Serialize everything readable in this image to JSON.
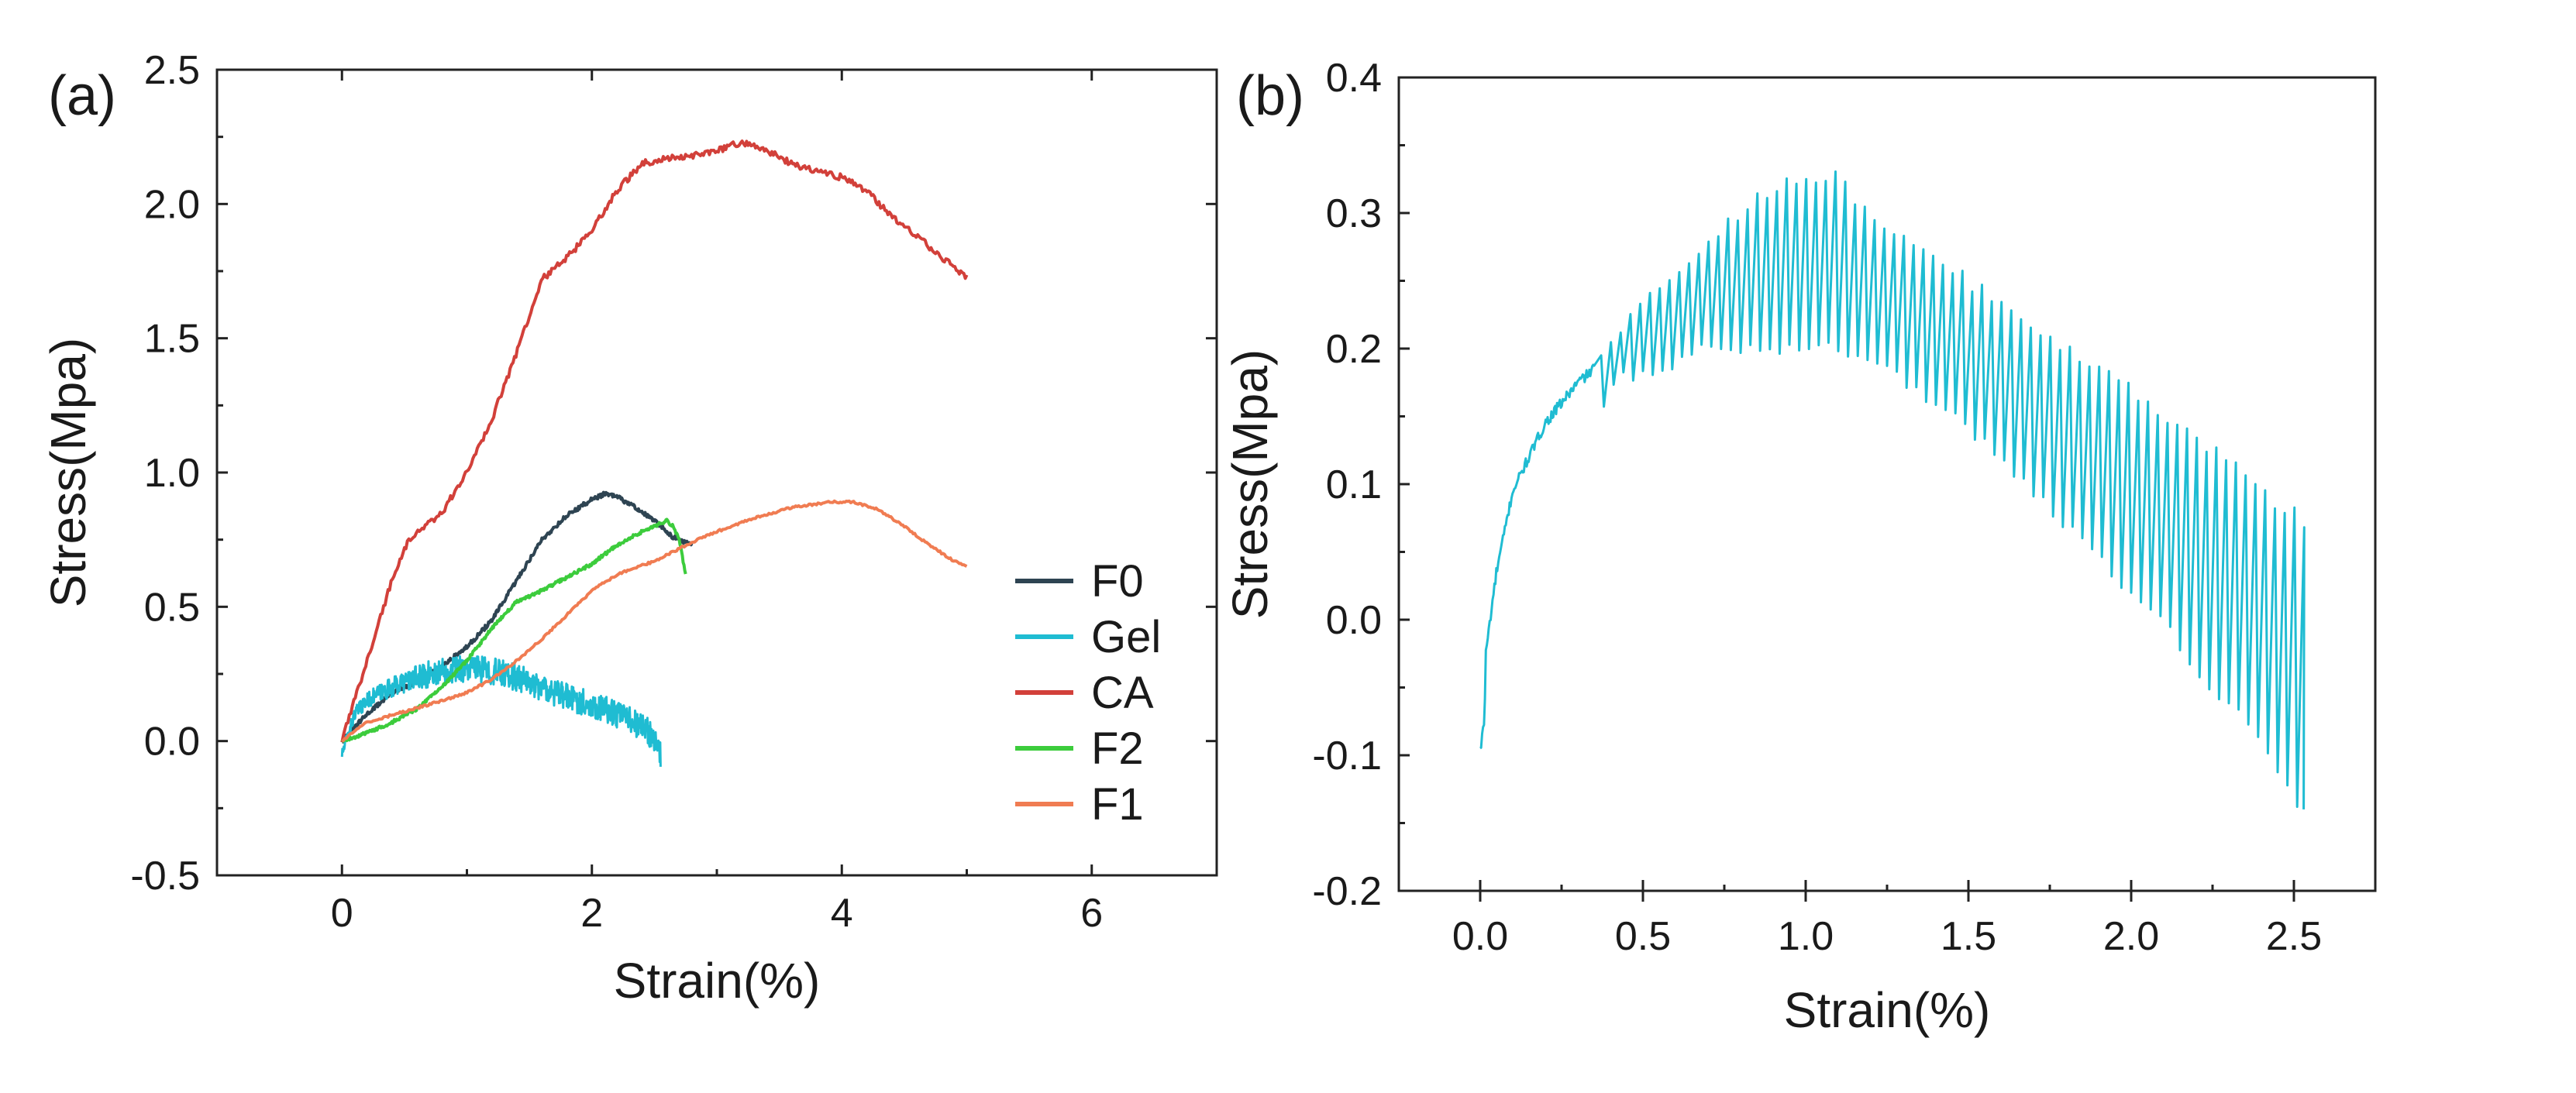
{
  "chart_data": [
    {
      "panel_label": "(a)",
      "type": "line",
      "xlabel": "Strain(%)",
      "ylabel": "Stress(Mpa)",
      "xlim": [
        -1,
        7
      ],
      "ylim": [
        -0.5,
        2.5
      ],
      "xticks": [
        0,
        2,
        4,
        6
      ],
      "xtick_labels": [
        "0",
        "2",
        "4",
        "6"
      ],
      "yticks": [
        -0.5,
        0.0,
        0.5,
        1.0,
        1.5,
        2.0,
        2.5
      ],
      "ytick_labels": [
        "-0.5",
        "0.0",
        "0.5",
        "1.0",
        "1.5",
        "2.0",
        "2.5"
      ],
      "legend_position": "right",
      "series": [
        {
          "name": "F0",
          "color": "#2e4452",
          "x": [
            0,
            0.2,
            0.4,
            0.6,
            0.8,
            1.0,
            1.2,
            1.4,
            1.6,
            1.8,
            2.0,
            2.1,
            2.2,
            2.35,
            2.5,
            2.65,
            2.8
          ],
          "y": [
            0,
            0.1,
            0.18,
            0.22,
            0.28,
            0.35,
            0.45,
            0.6,
            0.75,
            0.84,
            0.9,
            0.92,
            0.91,
            0.87,
            0.82,
            0.76,
            0.73
          ],
          "noise": 0.008
        },
        {
          "name": "Gel",
          "color": "#1fbcd2",
          "x": [
            0,
            0.1,
            0.2,
            0.3,
            0.5,
            0.7,
            0.9,
            1.1,
            1.3,
            1.5,
            1.7,
            1.9,
            2.1,
            2.3,
            2.45,
            2.55
          ],
          "y": [
            -0.05,
            0.1,
            0.15,
            0.18,
            0.22,
            0.25,
            0.27,
            0.27,
            0.25,
            0.22,
            0.18,
            0.15,
            0.12,
            0.08,
            0.04,
            -0.05
          ],
          "noise": 0.05
        },
        {
          "name": "CA",
          "color": "#d2403a",
          "x": [
            0,
            0.2,
            0.4,
            0.5,
            0.6,
            0.8,
            1.0,
            1.2,
            1.4,
            1.6,
            1.8,
            2.0,
            2.2,
            2.4,
            2.6,
            2.8,
            3.0,
            3.2,
            3.4,
            3.6,
            3.8,
            4.0,
            4.2,
            4.4,
            4.6,
            4.8,
            5.0
          ],
          "y": [
            0,
            0.3,
            0.6,
            0.72,
            0.78,
            0.85,
            1.0,
            1.2,
            1.45,
            1.72,
            1.8,
            1.9,
            2.05,
            2.15,
            2.17,
            2.18,
            2.2,
            2.23,
            2.2,
            2.15,
            2.12,
            2.1,
            2.05,
            1.95,
            1.88,
            1.8,
            1.73
          ],
          "noise": 0.012
        },
        {
          "name": "F2",
          "color": "#3ccc3c",
          "x": [
            0,
            0.2,
            0.4,
            0.6,
            0.8,
            1.0,
            1.2,
            1.4,
            1.6,
            1.8,
            2.0,
            2.2,
            2.4,
            2.6,
            2.65,
            2.7,
            2.75
          ],
          "y": [
            0,
            0.03,
            0.07,
            0.12,
            0.2,
            0.3,
            0.42,
            0.52,
            0.56,
            0.61,
            0.66,
            0.73,
            0.78,
            0.82,
            0.8,
            0.75,
            0.62
          ],
          "noise": 0.006
        },
        {
          "name": "F1",
          "color": "#f07c52",
          "x": [
            0,
            0.2,
            0.5,
            0.8,
            1.0,
            1.2,
            1.4,
            1.6,
            1.8,
            2.0,
            2.2,
            2.5,
            2.8,
            3.0,
            3.3,
            3.6,
            3.9,
            4.1,
            4.3,
            4.5,
            4.7,
            4.9,
            5.0
          ],
          "y": [
            0,
            0.07,
            0.11,
            0.15,
            0.18,
            0.23,
            0.3,
            0.38,
            0.47,
            0.56,
            0.62,
            0.67,
            0.74,
            0.78,
            0.83,
            0.87,
            0.89,
            0.89,
            0.86,
            0.8,
            0.73,
            0.67,
            0.65
          ],
          "noise": 0.004
        }
      ]
    },
    {
      "panel_label": "(b)",
      "type": "line",
      "xlabel": "Strain(%)",
      "ylabel": "Stress(Mpa)",
      "xlim": [
        -0.25,
        2.75
      ],
      "ylim": [
        -0.2,
        0.4
      ],
      "xticks": [
        0.0,
        0.5,
        1.0,
        1.5,
        2.0,
        2.5
      ],
      "xtick_labels": [
        "0.0",
        "0.5",
        "1.0",
        "1.5",
        "2.0",
        "2.5"
      ],
      "yticks": [
        -0.2,
        -0.1,
        0.0,
        0.1,
        0.2,
        0.3,
        0.4
      ],
      "ytick_labels": [
        "-0.2",
        "-0.1",
        "0.0",
        "0.1",
        "0.2",
        "0.3",
        "0.4"
      ],
      "series": [
        {
          "name": "Gel",
          "color": "#1fbcd2",
          "upper_envelope": {
            "x": [
              0,
              0.05,
              0.1,
              0.2,
              0.3,
              0.35,
              0.4,
              0.45,
              0.5,
              0.6,
              0.7,
              0.8,
              0.9,
              1.0,
              1.08,
              1.2,
              1.4,
              1.6,
              1.8,
              2.0,
              2.1,
              2.2,
              2.3,
              2.4,
              2.45,
              2.5,
              2.53
            ],
            "y": [
              -0.05,
              0.04,
              0.1,
              0.15,
              0.18,
              0.19,
              0.2,
              0.22,
              0.23,
              0.26,
              0.28,
              0.3,
              0.32,
              0.325,
              0.33,
              0.3,
              0.27,
              0.23,
              0.2,
              0.17,
              0.15,
              0.13,
              0.12,
              0.1,
              0.085,
              0.08,
              0.07
            ]
          },
          "lower_envelope": {
            "x": [
              0,
              0.05,
              0.1,
              0.2,
              0.3,
              0.35,
              0.4,
              0.45,
              0.5,
              0.6,
              0.7,
              0.8,
              0.9,
              1.0,
              1.08,
              1.2,
              1.4,
              1.6,
              1.8,
              2.0,
              2.1,
              2.2,
              2.3,
              2.4,
              2.45,
              2.5,
              2.53
            ],
            "y": [
              -0.1,
              0.02,
              0.08,
              0.13,
              0.16,
              0.15,
              0.17,
              0.18,
              0.18,
              0.19,
              0.2,
              0.2,
              0.2,
              0.2,
              0.2,
              0.19,
              0.16,
              0.12,
              0.07,
              0.02,
              0.0,
              -0.04,
              -0.06,
              -0.09,
              -0.11,
              -0.13,
              -0.14
            ]
          },
          "oscillation_start_strain": 0.35,
          "oscillation_period": 0.03
        }
      ]
    }
  ]
}
